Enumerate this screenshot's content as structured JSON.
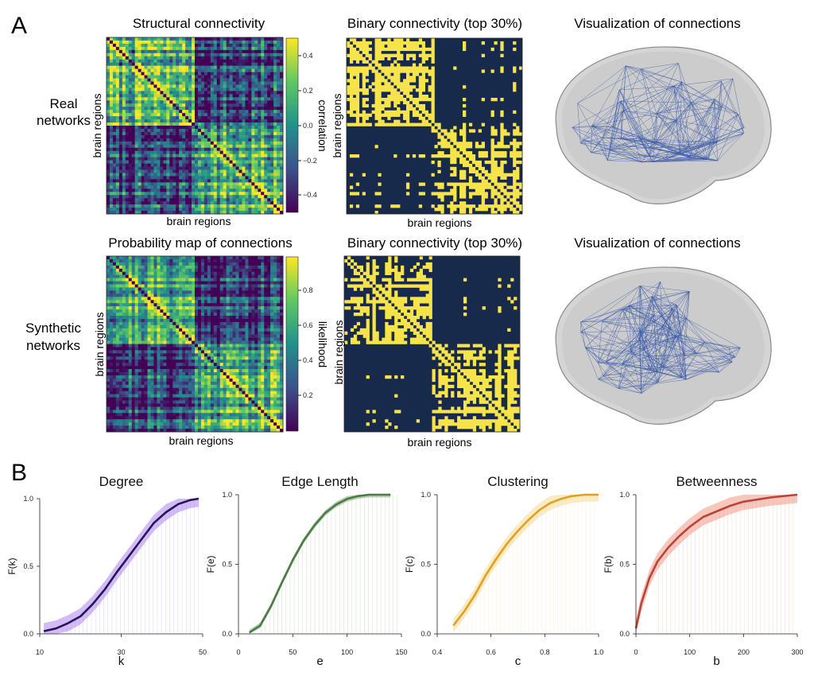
{
  "panel_a": {
    "letter": "A",
    "rows": [
      {
        "label_lines": [
          "Real",
          "networks"
        ],
        "matrix": {
          "title": "Structural connectivity",
          "xlabel": "brain regions",
          "ylabel": "brain regions",
          "colorbar_label": "correlation",
          "colorbar_ticks": [
            "0.4",
            "0.2",
            "0.0",
            "−0.2",
            "−0.4"
          ]
        },
        "binary": {
          "title": "Binary connectivity (top 30%)",
          "xlabel": "brain regions",
          "ylabel": "brain regions"
        },
        "brain": {
          "title": "Visualization of connections"
        }
      },
      {
        "label_lines": [
          "Synthetic",
          "networks"
        ],
        "matrix": {
          "title": "Probability map of connections",
          "xlabel": "brain regions",
          "ylabel": "brain regions",
          "colorbar_label": "likelihood",
          "colorbar_ticks": [
            "0.8",
            "0.6",
            "0.4",
            "0.2"
          ]
        },
        "binary": {
          "title": "Binary connectivity (top 30%)",
          "xlabel": "brain regions",
          "ylabel": "brain regions"
        },
        "brain": {
          "title": "Visualization of connections"
        }
      }
    ]
  },
  "panel_b": {
    "letter": "B"
  },
  "colors": {
    "binary_on": "#f7e34a",
    "binary_off": "#172a4c",
    "edge": "#3a5aa8",
    "brain_fill": "#9a9a9a",
    "degree": "#2a1458",
    "degree_light": "#a479f0",
    "edge_length": "#4d7a45",
    "edge_length_light": "#7aa870",
    "clustering": "#e0a21c",
    "clustering_light": "#f6d68c",
    "betweenness": "#b8443a",
    "betweenness_light": "#ef8f7c"
  },
  "chart_data": [
    {
      "type": "heatmap",
      "title": "Structural connectivity",
      "xlabel": "brain regions",
      "ylabel": "brain regions",
      "colorbar": {
        "label": "correlation",
        "range": [
          -0.5,
          0.5
        ],
        "ticks": [
          0.4,
          0.2,
          0.0,
          -0.2,
          -0.4
        ],
        "colormap": "viridis"
      }
    },
    {
      "type": "heatmap",
      "title": "Probability map of connections",
      "xlabel": "brain regions",
      "ylabel": "brain regions",
      "colorbar": {
        "label": "likelihood",
        "range": [
          0.0,
          1.0
        ],
        "ticks": [
          0.8,
          0.6,
          0.4,
          0.2
        ],
        "colormap": "viridis"
      }
    },
    {
      "type": "line",
      "title": "Degree",
      "xlabel": "k",
      "ylabel": "F(k)",
      "xlim": [
        10,
        50
      ],
      "ylim": [
        0,
        1
      ],
      "xticks": [
        10,
        30,
        50
      ],
      "yticks": [
        0.0,
        0.5,
        1.0
      ],
      "xtick_labels": [
        "10",
        "30",
        "50"
      ],
      "ytick_labels": [
        "0.0",
        "0.5",
        "1.0"
      ],
      "series": [
        {
          "x": [
            11,
            14,
            17,
            20,
            23,
            26,
            29,
            32,
            35,
            38,
            41,
            44,
            47,
            49
          ],
          "y": [
            0.02,
            0.04,
            0.08,
            0.13,
            0.22,
            0.33,
            0.46,
            0.58,
            0.7,
            0.82,
            0.9,
            0.96,
            0.99,
            1.0
          ]
        }
      ]
    },
    {
      "type": "line",
      "title": "Edge Length",
      "xlabel": "e",
      "ylabel": "F(e)",
      "xlim": [
        0,
        150
      ],
      "ylim": [
        0,
        1
      ],
      "xticks": [
        0,
        50,
        100,
        150
      ],
      "yticks": [
        0.0,
        0.5,
        1.0
      ],
      "xtick_labels": [
        "0",
        "50",
        "100",
        "150"
      ],
      "ytick_labels": [
        "0.0",
        "0.5",
        "1.0"
      ],
      "series": [
        {
          "x": [
            10,
            20,
            30,
            40,
            50,
            60,
            70,
            80,
            90,
            100,
            110,
            120,
            130,
            140
          ],
          "y": [
            0.01,
            0.06,
            0.2,
            0.37,
            0.53,
            0.67,
            0.78,
            0.87,
            0.93,
            0.97,
            0.99,
            1.0,
            1.0,
            1.0
          ]
        }
      ]
    },
    {
      "type": "line",
      "title": "Clustering",
      "xlabel": "c",
      "ylabel": "F(c)",
      "xlim": [
        0.4,
        1.0
      ],
      "ylim": [
        0,
        1
      ],
      "xticks": [
        0.4,
        0.6,
        0.8,
        1.0
      ],
      "yticks": [
        0.0,
        0.5,
        1.0
      ],
      "xtick_labels": [
        "0.4",
        "0.6",
        "0.8",
        "1.0"
      ],
      "ytick_labels": [
        "0.0",
        "0.5",
        "1.0"
      ],
      "series": [
        {
          "x": [
            0.46,
            0.5,
            0.54,
            0.58,
            0.62,
            0.66,
            0.7,
            0.74,
            0.78,
            0.82,
            0.86,
            0.9,
            0.95,
            1.0
          ],
          "y": [
            0.06,
            0.16,
            0.28,
            0.42,
            0.54,
            0.65,
            0.74,
            0.82,
            0.89,
            0.94,
            0.97,
            0.99,
            1.0,
            1.0
          ]
        }
      ]
    },
    {
      "type": "line",
      "title": "Betweenness",
      "xlabel": "b",
      "ylabel": "F(b)",
      "xlim": [
        0,
        300
      ],
      "ylim": [
        0,
        1
      ],
      "xticks": [
        0,
        100,
        200,
        300
      ],
      "yticks": [
        0.0,
        0.5,
        1.0
      ],
      "xtick_labels": [
        "0",
        "100",
        "200",
        "300"
      ],
      "ytick_labels": [
        "0.0",
        "0.5",
        "1.0"
      ],
      "series": [
        {
          "x": [
            0,
            10,
            25,
            40,
            60,
            80,
            100,
            125,
            150,
            175,
            200,
            250,
            300
          ],
          "y": [
            0.04,
            0.22,
            0.4,
            0.52,
            0.62,
            0.7,
            0.77,
            0.84,
            0.88,
            0.92,
            0.95,
            0.98,
            1.0
          ]
        }
      ]
    }
  ]
}
